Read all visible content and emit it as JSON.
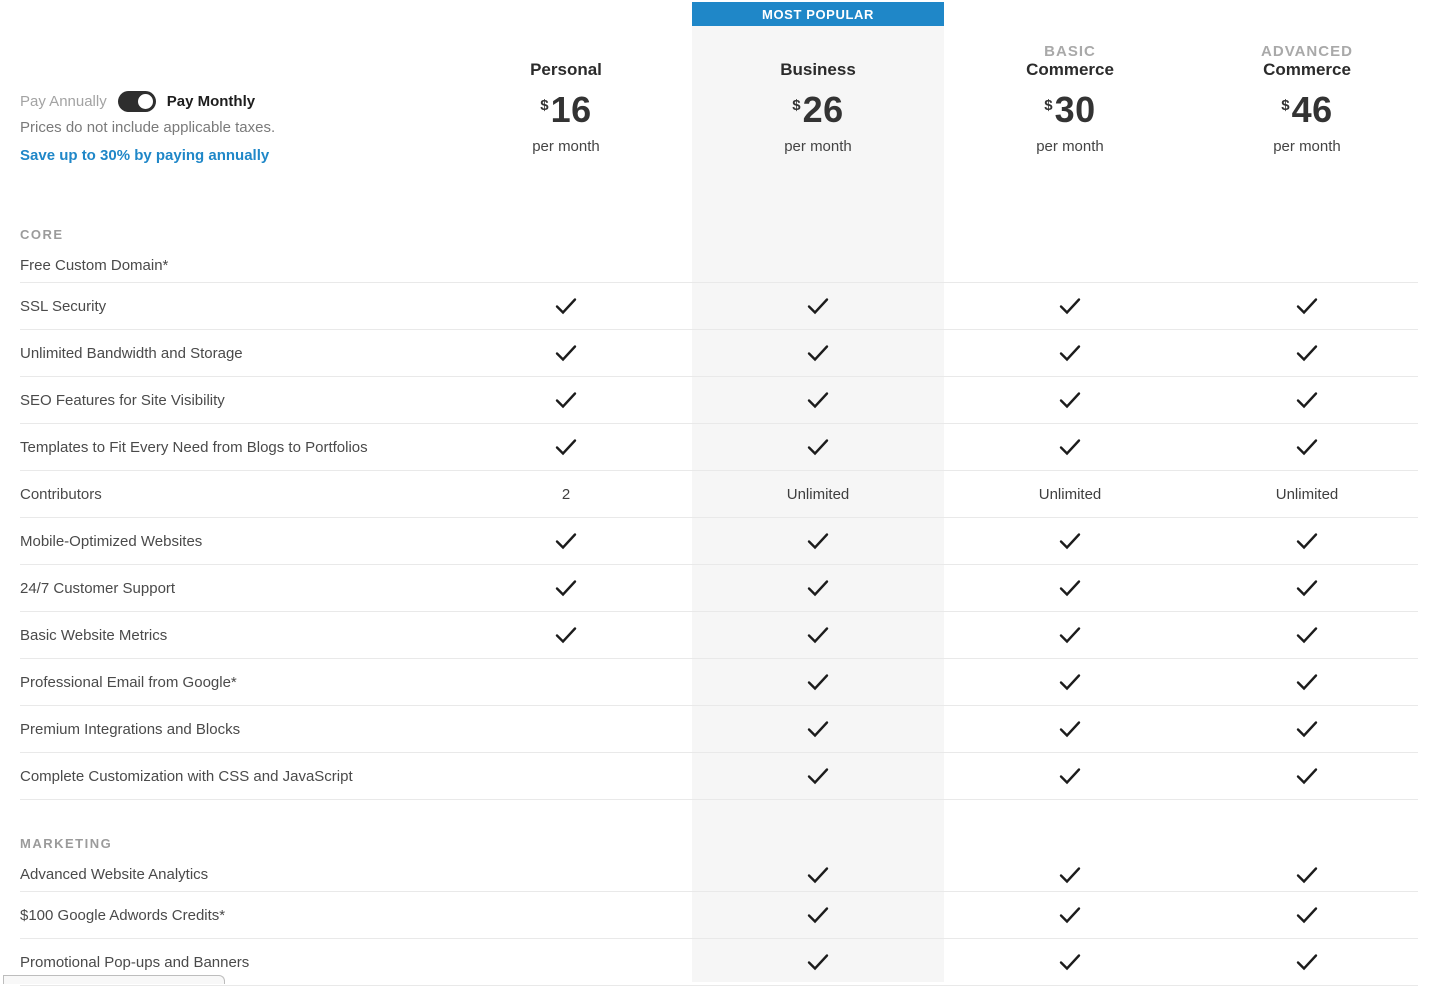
{
  "accent": {
    "blue": "#1f87c8",
    "highlight_bg": "#f6f6f6"
  },
  "most_popular_badge": "MOST POPULAR",
  "billing": {
    "annual_label": "Pay Annually",
    "monthly_label": "Pay Monthly",
    "selected": "monthly",
    "tax_note": "Prices do not include applicable taxes.",
    "savings_link": "Save up to 30% by paying annually"
  },
  "plans": [
    {
      "pre": "",
      "name": "Personal",
      "currency": "$",
      "price": "16",
      "period": "per month",
      "highlighted": false
    },
    {
      "pre": "",
      "name": "Business",
      "currency": "$",
      "price": "26",
      "period": "per month",
      "highlighted": true
    },
    {
      "pre": "BASIC",
      "name": "Commerce",
      "currency": "$",
      "price": "30",
      "period": "per month",
      "highlighted": false
    },
    {
      "pre": "ADVANCED",
      "name": "Commerce",
      "currency": "$",
      "price": "46",
      "period": "per month",
      "highlighted": false
    }
  ],
  "sections": [
    {
      "title": "CORE",
      "rows": [
        {
          "label": "Free Custom Domain*",
          "cells": [
            "",
            "",
            "",
            ""
          ]
        },
        {
          "label": "SSL Security",
          "cells": [
            "check",
            "check",
            "check",
            "check"
          ]
        },
        {
          "label": "Unlimited Bandwidth and Storage",
          "cells": [
            "check",
            "check",
            "check",
            "check"
          ]
        },
        {
          "label": "SEO Features for Site Visibility",
          "cells": [
            "check",
            "check",
            "check",
            "check"
          ]
        },
        {
          "label": "Templates to Fit Every Need from Blogs to Portfolios",
          "cells": [
            "check",
            "check",
            "check",
            "check"
          ]
        },
        {
          "label": "Contributors",
          "cells": [
            "2",
            "Unlimited",
            "Unlimited",
            "Unlimited"
          ]
        },
        {
          "label": "Mobile-Optimized Websites",
          "cells": [
            "check",
            "check",
            "check",
            "check"
          ]
        },
        {
          "label": "24/7 Customer Support",
          "cells": [
            "check",
            "check",
            "check",
            "check"
          ]
        },
        {
          "label": "Basic Website Metrics",
          "cells": [
            "check",
            "check",
            "check",
            "check"
          ]
        },
        {
          "label": "Professional Email from Google*",
          "cells": [
            "",
            "check",
            "check",
            "check"
          ]
        },
        {
          "label": "Premium Integrations and Blocks",
          "cells": [
            "",
            "check",
            "check",
            "check"
          ]
        },
        {
          "label": "Complete Customization with CSS and JavaScript",
          "cells": [
            "",
            "check",
            "check",
            "check"
          ]
        }
      ]
    },
    {
      "title": "MARKETING",
      "rows": [
        {
          "label": "Advanced Website Analytics",
          "cells": [
            "",
            "check",
            "check",
            "check"
          ]
        },
        {
          "label": "$100 Google Adwords Credits*",
          "cells": [
            "",
            "check",
            "check",
            "check"
          ]
        },
        {
          "label": "Promotional Pop-ups and Banners",
          "cells": [
            "",
            "check",
            "check",
            "check"
          ]
        }
      ]
    }
  ]
}
